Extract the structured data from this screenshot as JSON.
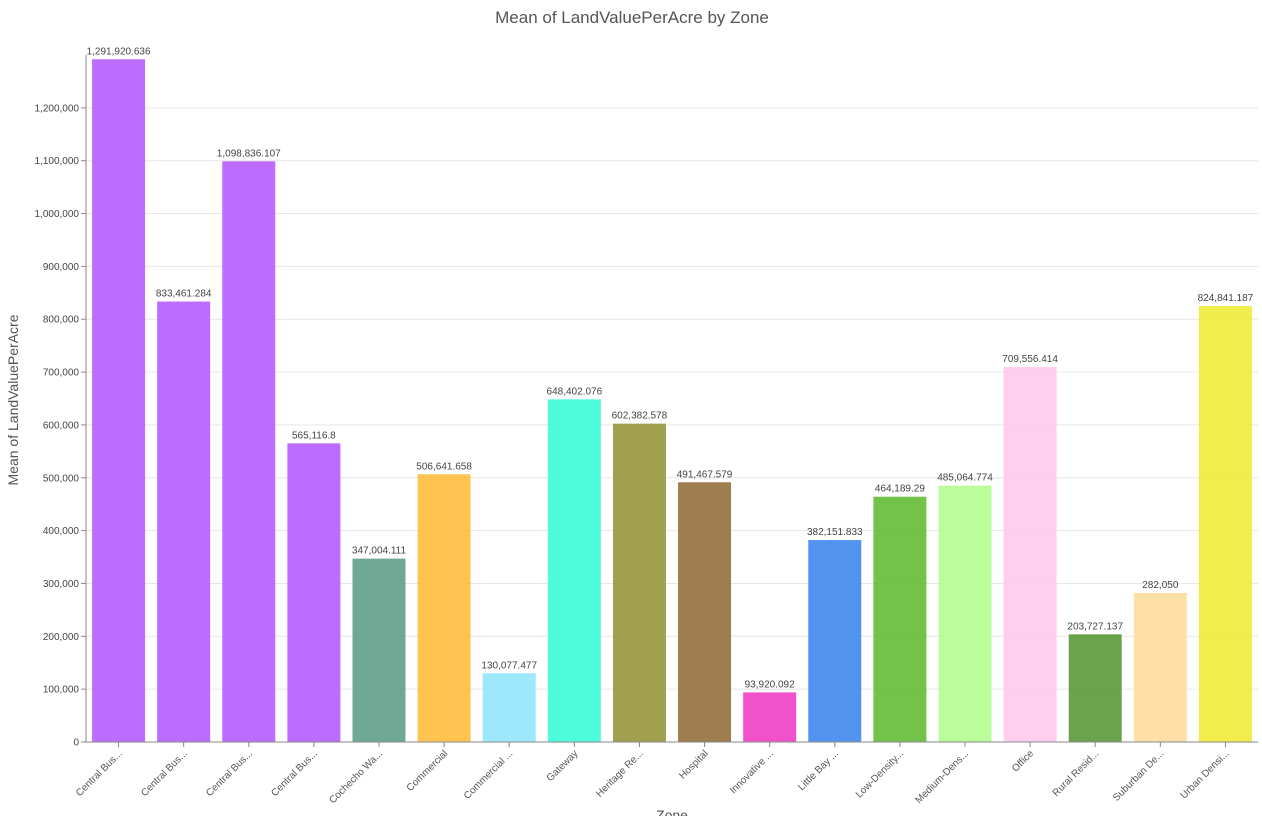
{
  "chart_data": {
    "type": "bar",
    "title": "Mean of LandValuePerAcre by Zone",
    "xlabel": "Zone",
    "ylabel": "Mean of LandValuePerAcre",
    "ylim": [
      0,
      1300000
    ],
    "yticks": [
      0,
      100000,
      200000,
      300000,
      400000,
      500000,
      600000,
      700000,
      800000,
      900000,
      1000000,
      1100000,
      1200000
    ],
    "ytick_labels": [
      "0",
      "100,000",
      "200,000",
      "300,000",
      "400,000",
      "500,000",
      "600,000",
      "700,000",
      "800,000",
      "900,000",
      "1,000,000",
      "1,100,000",
      "1,200,000"
    ],
    "grid": true,
    "categories": [
      "Central Bus...",
      "Central Bus...",
      "Central Bus...",
      "Central Bus...",
      "Cochecho Wa...",
      "Commercial",
      "Commercial ...",
      "Gateway",
      "Heritage Re...",
      "Hospital",
      "Innovative ...",
      "Little Bay ...",
      "Low-Density...",
      "Medium-Dens...",
      "Office",
      "Rural Resid...",
      "Suburban De...",
      "Urban Densi..."
    ],
    "values": [
      1291920.636,
      833461.284,
      1098836.107,
      565116.8,
      347004.111,
      506641.658,
      130077.477,
      648402.076,
      602382.578,
      491467.579,
      93920.092,
      382151.833,
      464189.29,
      485064.774,
      709556.414,
      203727.137,
      282050,
      824841.187
    ],
    "value_labels": [
      "1,291,920.636",
      "833,461.284",
      "1,098,836.107",
      "565,116.8",
      "347,004.111",
      "506,641.658",
      "130,077.477",
      "648,402.076",
      "602,382.578",
      "491,467.579",
      "93,920.092",
      "382,151.833",
      "464,189.29",
      "485,064.774",
      "709,556.414",
      "203,727.137",
      "282,050",
      "824,841.187"
    ],
    "colors": [
      "#b55cff",
      "#b55cff",
      "#b55cff",
      "#b55cff",
      "#5f9e8a",
      "#ffbe3d",
      "#93e6fd",
      "#3bfdd8",
      "#96963c",
      "#946f3b",
      "#ef3fc6",
      "#3e87ed",
      "#64bd37",
      "#b3fd8f",
      "#fecbec",
      "#5b983a",
      "#fedd9d",
      "#eeeb3a"
    ]
  }
}
